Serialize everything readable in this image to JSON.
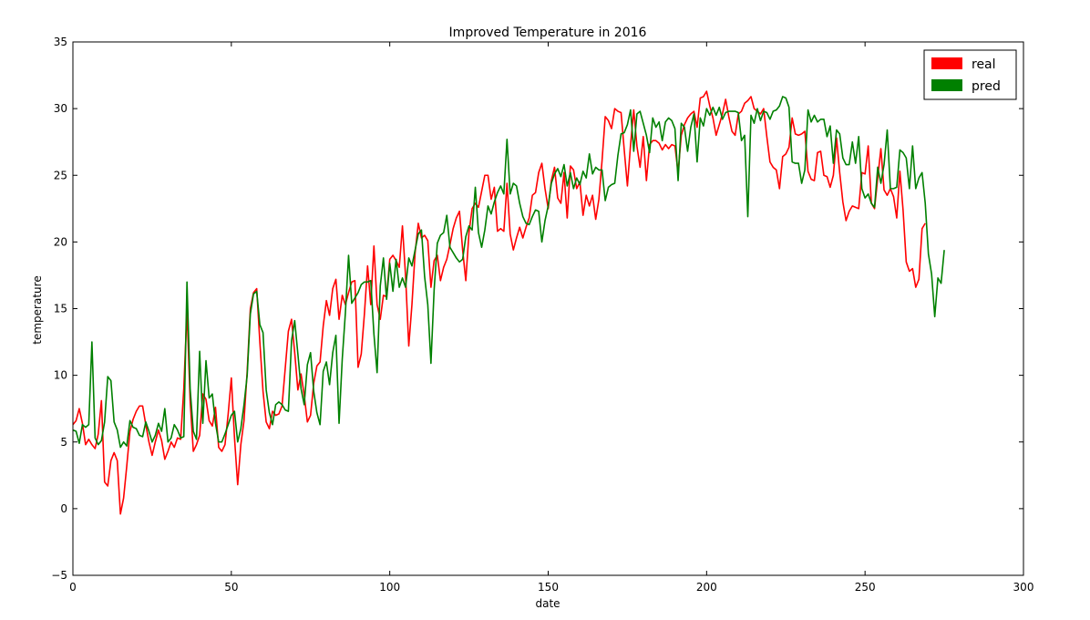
{
  "chart_data": {
    "type": "line",
    "title": "Improved Temperature in 2016",
    "xlabel": "date",
    "ylabel": "temperature",
    "xlim": [
      0,
      300
    ],
    "ylim": [
      -5,
      35
    ],
    "xticks": [
      0,
      50,
      100,
      150,
      200,
      250,
      300
    ],
    "yticks": [
      -5,
      0,
      5,
      10,
      15,
      20,
      25,
      30,
      35
    ],
    "grid": false,
    "legend": "top-right",
    "series": [
      {
        "name": "real",
        "color": "#ff0000",
        "x_start": 0,
        "x_step": 1,
        "values": [
          6.3,
          6.6,
          7.5,
          6.4,
          4.8,
          5.2,
          4.8,
          4.5,
          5.6,
          8.1,
          2.0,
          1.7,
          3.6,
          4.2,
          3.6,
          -0.4,
          0.8,
          3.2,
          5.8,
          6.7,
          7.3,
          7.7,
          7.7,
          6.3,
          5.0,
          4.0,
          5.0,
          5.9,
          5.1,
          3.7,
          4.3,
          5.0,
          4.6,
          5.3,
          5.2,
          9.0,
          14.9,
          8.1,
          4.3,
          4.8,
          5.5,
          8.6,
          8.2,
          6.6,
          6.2,
          7.6,
          4.6,
          4.3,
          4.8,
          7.1,
          9.8,
          5.3,
          1.8,
          4.8,
          6.6,
          10.3,
          15.0,
          16.2,
          16.5,
          12.5,
          8.8,
          6.5,
          6.0,
          7.3,
          7.0,
          7.1,
          7.7,
          10.5,
          13.3,
          14.2,
          11.7,
          8.9,
          10.1,
          8.5,
          6.5,
          7.0,
          9.4,
          10.7,
          11.0,
          13.7,
          15.6,
          14.5,
          16.5,
          17.2,
          14.2,
          16.0,
          15.3,
          16.2,
          17.0,
          17.1,
          10.6,
          11.6,
          14.6,
          18.2,
          15.3,
          19.7,
          15.3,
          14.2,
          16.0,
          15.9,
          18.7,
          19.0,
          18.6,
          18.1,
          21.2,
          17.4,
          12.2,
          15.3,
          19.2,
          21.4,
          20.3,
          20.5,
          20.1,
          16.6,
          18.6,
          19.0,
          17.1,
          18.1,
          18.7,
          19.8,
          21.0,
          21.8,
          22.3,
          19.4,
          17.1,
          20.7,
          22.5,
          22.9,
          22.6,
          23.8,
          25.0,
          25.0,
          23.2,
          24.1,
          20.8,
          21.0,
          20.8,
          24.4,
          20.6,
          19.4,
          20.3,
          21.1,
          20.3,
          21.1,
          21.8,
          23.5,
          23.7,
          25.2,
          25.9,
          24.0,
          22.5,
          24.6,
          25.6,
          23.3,
          22.9,
          25.2,
          21.8,
          25.7,
          25.4,
          24.0,
          24.5,
          22.0,
          23.5,
          22.7,
          23.5,
          21.7,
          23.2,
          26.1,
          29.4,
          29.1,
          28.5,
          30.0,
          29.8,
          29.7,
          26.9,
          24.2,
          27.3,
          29.9,
          27.2,
          25.6,
          27.9,
          24.6,
          27.3,
          27.6,
          27.6,
          27.4,
          26.9,
          27.3,
          27.0,
          27.3,
          27.2,
          25.2,
          28.0,
          28.8,
          29.3,
          29.6,
          29.8,
          28.6,
          30.8,
          30.9,
          31.3,
          30.2,
          29.3,
          28.0,
          28.8,
          29.6,
          30.7,
          29.4,
          28.3,
          28.0,
          29.6,
          29.8,
          30.4,
          30.6,
          30.9,
          30.0,
          29.8,
          29.6,
          30.0,
          27.9,
          26.0,
          25.6,
          25.4,
          24.0,
          26.4,
          26.6,
          27.1,
          29.3,
          28.1,
          28.0,
          28.1,
          28.3,
          25.3,
          24.7,
          24.6,
          26.7,
          26.8,
          25.0,
          24.9,
          24.1,
          25.0,
          27.8,
          25.2,
          23.0,
          21.6,
          22.3,
          22.7,
          22.6,
          22.5,
          25.2,
          25.1,
          27.2,
          22.9,
          22.5,
          24.8,
          27.0,
          23.9,
          23.5,
          24.0,
          23.4,
          21.8,
          25.3,
          22.4,
          18.5,
          17.8,
          18.0,
          16.6,
          17.2,
          21.0,
          21.4
        ]
      },
      {
        "name": "pred",
        "color": "#008000",
        "x_start": 0,
        "x_step": 1,
        "values": [
          5.9,
          5.8,
          4.9,
          6.3,
          6.1,
          6.3,
          12.5,
          5.3,
          4.8,
          5.1,
          6.5,
          9.9,
          9.6,
          6.5,
          5.9,
          4.6,
          5.0,
          4.7,
          6.6,
          6.1,
          6.0,
          5.5,
          5.4,
          6.5,
          5.8,
          5.0,
          5.5,
          6.4,
          5.8,
          7.5,
          5.0,
          5.3,
          6.3,
          5.9,
          5.3,
          5.4,
          17.0,
          9.0,
          5.8,
          5.2,
          11.8,
          6.4,
          11.1,
          8.3,
          8.6,
          6.4,
          5.0,
          5.0,
          5.6,
          6.3,
          7.0,
          7.3,
          5.0,
          6.0,
          7.8,
          10.0,
          14.6,
          16.1,
          16.3,
          13.8,
          13.2,
          8.9,
          7.2,
          6.3,
          7.8,
          8.0,
          7.8,
          7.4,
          7.3,
          12.6,
          14.1,
          11.6,
          9.0,
          7.8,
          10.8,
          11.7,
          8.8,
          7.2,
          6.3,
          10.3,
          11.0,
          9.3,
          11.7,
          13.0,
          6.4,
          11.2,
          14.7,
          19.0,
          15.4,
          15.8,
          16.2,
          16.8,
          17.0,
          17.0,
          17.1,
          13.1,
          10.2,
          16.7,
          18.8,
          15.7,
          18.4,
          16.3,
          18.7,
          16.6,
          17.3,
          16.6,
          18.8,
          18.2,
          19.4,
          20.6,
          20.9,
          17.4,
          15.3,
          10.9,
          16.4,
          19.9,
          20.5,
          20.7,
          22.0,
          19.6,
          19.2,
          18.8,
          18.5,
          18.7,
          20.4,
          21.2,
          20.9,
          24.1,
          20.7,
          19.6,
          20.9,
          22.7,
          22.1,
          23.0,
          23.7,
          24.2,
          23.6,
          27.7,
          23.6,
          24.4,
          24.2,
          22.9,
          21.9,
          21.4,
          21.3,
          21.9,
          22.4,
          22.3,
          20.0,
          21.6,
          22.7,
          24.4,
          25.1,
          25.5,
          24.9,
          25.8,
          24.2,
          25.2,
          24.0,
          24.8,
          24.3,
          25.3,
          24.8,
          26.6,
          25.1,
          25.6,
          25.4,
          25.4,
          23.1,
          24.1,
          24.3,
          24.4,
          26.5,
          28.1,
          28.2,
          28.8,
          29.9,
          26.8,
          29.6,
          29.8,
          28.9,
          28.0,
          26.7,
          29.3,
          28.6,
          29.0,
          27.6,
          29.0,
          29.3,
          29.1,
          28.5,
          24.6,
          28.9,
          28.6,
          26.8,
          28.6,
          29.6,
          26.0,
          29.3,
          28.7,
          30.0,
          29.5,
          30.1,
          29.5,
          30.1,
          29.2,
          29.7,
          29.8,
          29.8,
          29.8,
          29.7,
          27.6,
          28.0,
          21.9,
          29.5,
          28.9,
          30.0,
          29.1,
          29.8,
          29.7,
          29.2,
          29.8,
          29.9,
          30.2,
          30.9,
          30.8,
          30.1,
          26.0,
          25.9,
          25.9,
          24.4,
          25.4,
          29.9,
          29.0,
          29.5,
          29.0,
          29.2,
          29.2,
          27.9,
          28.7,
          25.9,
          28.4,
          28.1,
          26.3,
          25.8,
          25.8,
          27.5,
          25.9,
          27.9,
          24.0,
          23.3,
          23.6,
          22.9,
          22.6,
          25.6,
          24.4,
          25.8,
          28.4,
          24.0,
          24.0,
          24.1,
          26.9,
          26.7,
          26.3,
          24.0,
          27.2,
          24.0,
          24.8,
          25.2,
          22.9,
          19.1,
          17.6,
          14.4,
          17.3,
          16.9,
          19.4
        ]
      }
    ]
  }
}
